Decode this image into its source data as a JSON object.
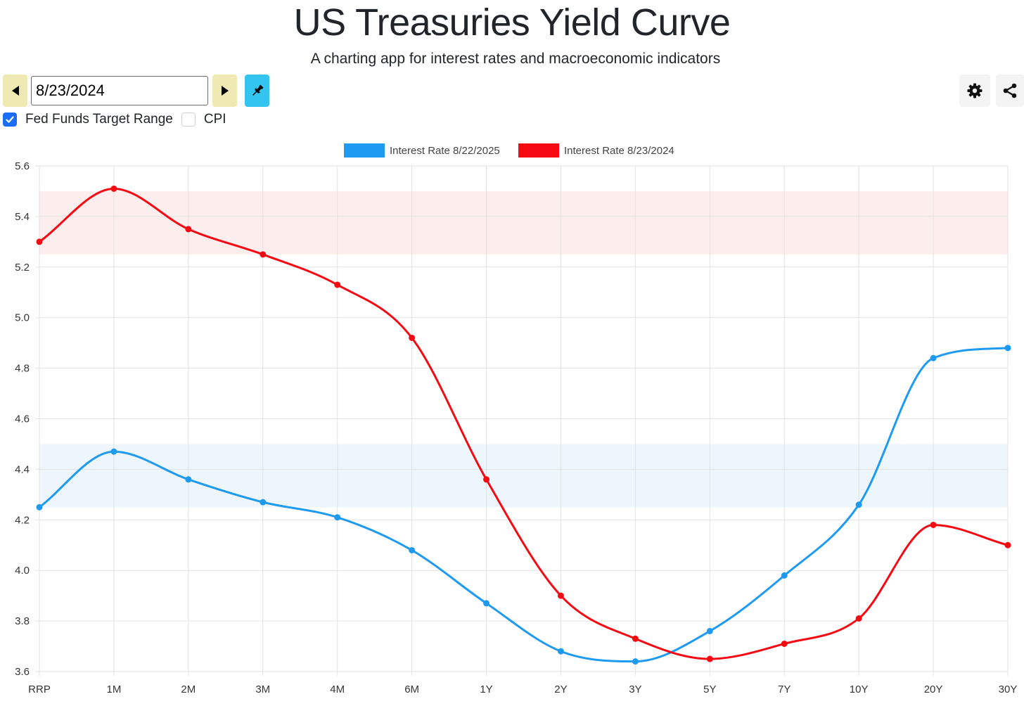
{
  "header": {
    "title": "US Treasuries Yield Curve",
    "subtitle": "A charting app for interest rates and macroeconomic indicators"
  },
  "toolbar": {
    "date_value": "8/23/2024",
    "prev_icon": "triangle-left-icon",
    "next_icon": "triangle-right-icon",
    "pin_icon": "pushpin-icon",
    "settings_icon": "gear-icon",
    "share_icon": "share-icon"
  },
  "options": {
    "fed_funds": {
      "label": "Fed Funds Target Range",
      "checked": true
    },
    "cpi": {
      "label": "CPI",
      "checked": false
    }
  },
  "colors": {
    "series_2025": "#1e9bf0",
    "series_2024": "#f50a14",
    "band_2025": "#eef6fd",
    "band_2024": "#fdeeee",
    "grid": "#e2e2e2"
  },
  "chart_data": {
    "type": "line",
    "categories": [
      "RRP",
      "1M",
      "2M",
      "3M",
      "4M",
      "6M",
      "1Y",
      "2Y",
      "3Y",
      "5Y",
      "7Y",
      "10Y",
      "20Y",
      "30Y"
    ],
    "series": [
      {
        "name": "Interest Rate 8/22/2025",
        "color": "#1e9bf0",
        "values": [
          4.25,
          4.47,
          4.36,
          4.27,
          4.21,
          4.08,
          3.87,
          3.68,
          3.64,
          3.76,
          3.98,
          4.26,
          4.84,
          4.88
        ]
      },
      {
        "name": "Interest Rate 8/23/2024",
        "color": "#f50a14",
        "values": [
          5.3,
          5.51,
          5.35,
          5.25,
          5.13,
          4.92,
          4.36,
          3.9,
          3.73,
          3.65,
          3.71,
          3.81,
          4.18,
          4.1
        ]
      }
    ],
    "bands": [
      {
        "series": "Interest Rate 8/23/2024",
        "range": [
          5.25,
          5.5
        ]
      },
      {
        "series": "Interest Rate 8/22/2025",
        "range": [
          4.25,
          4.5
        ]
      }
    ],
    "ylim": [
      3.6,
      5.6
    ],
    "yticks": [
      "3.6",
      "3.8",
      "4.0",
      "4.2",
      "4.4",
      "4.6",
      "4.8",
      "5.0",
      "5.2",
      "5.4",
      "5.6"
    ],
    "grid": true,
    "legend": "top-center"
  }
}
